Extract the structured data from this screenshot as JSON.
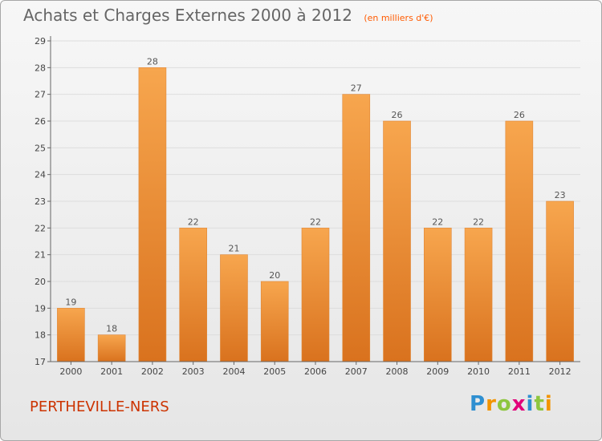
{
  "header": {
    "title": "Achats et Charges Externes 2000 à 2012",
    "unit": "(en milliers d'€)"
  },
  "footer": {
    "place": "PERTHEVILLE-NERS",
    "logo_letters": [
      "P",
      "r",
      "o",
      "x",
      "i",
      "t",
      "i"
    ],
    "logo_colors": [
      "#2e8fd1",
      "#f29400",
      "#8dc63f",
      "#e2007a",
      "#2e8fd1",
      "#8dc63f",
      "#f29400"
    ]
  },
  "chart_data": {
    "type": "bar",
    "title": "Achats et Charges Externes 2000 à 2012",
    "subtitle": "(en milliers d'€)",
    "xlabel": "",
    "ylabel": "",
    "categories": [
      "2000",
      "2001",
      "2002",
      "2003",
      "2004",
      "2005",
      "2006",
      "2007",
      "2008",
      "2009",
      "2010",
      "2011",
      "2012"
    ],
    "values": [
      19,
      18,
      28,
      22,
      21,
      20,
      22,
      27,
      26,
      22,
      22,
      26,
      23
    ],
    "ylim": [
      17,
      29
    ],
    "yticks": [
      17,
      18,
      19,
      20,
      21,
      22,
      23,
      24,
      25,
      26,
      27,
      28,
      29
    ],
    "grid": true,
    "legend": "none",
    "colors": {
      "bar_light": "#f7a64e",
      "bar_dark": "#d9721e",
      "grid": "#dddddd",
      "axis": "#666666"
    }
  }
}
